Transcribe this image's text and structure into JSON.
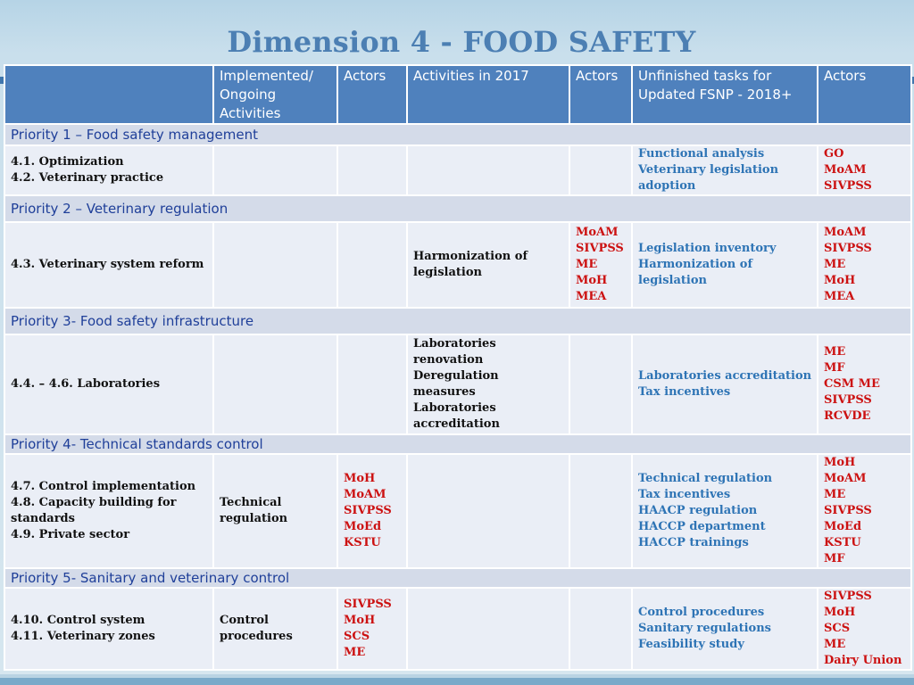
{
  "title": "Dimension 4 - FOOD SAFETY",
  "colors": {
    "header_bg": "#4f81bd",
    "priority_text": "#1f3f99",
    "task_text": "#2e74b5",
    "actor_text": "#cc1111",
    "title_color": "#4c7fb3"
  },
  "headers": {
    "implemented": [
      "Implemented/",
      "Ongoing",
      "Activities"
    ],
    "actors1": "Actors",
    "activities2017": "Activities in 2017",
    "actors2": "Actors",
    "unfinished": [
      "Unfinished tasks for",
      "Updated FSNP - 2018+"
    ],
    "actors3": "Actors"
  },
  "priorities": [
    {
      "label": "Priority 1 – Food safety management",
      "items": [
        "4.1. Optimization",
        "4.2. Veterinary practice"
      ],
      "implemented": [],
      "actors1": [],
      "activities2017": [],
      "actors2": [],
      "tasks": [
        "Functional analysis",
        "Veterinary legislation",
        "adoption"
      ],
      "actors3": [
        "GO",
        "MoAM",
        "SIVPSS"
      ]
    },
    {
      "label": "Priority 2 – Veterinary regulation",
      "items": [
        "4.3. Veterinary system reform"
      ],
      "implemented": [],
      "actors1": [],
      "activities2017": [
        "Harmonization of",
        "legislation"
      ],
      "actors2": [
        "MoAM",
        "SIVPSS",
        "ME",
        "MoH",
        "MEA"
      ],
      "tasks": [
        "Legislation inventory",
        "Harmonization of",
        "legislation"
      ],
      "actors3": [
        "MoAM",
        "SIVPSS",
        "ME",
        "MoH",
        "MEA"
      ]
    },
    {
      "label": "Priority 3- Food safety infrastructure",
      "items": [
        "4.4. – 4.6. Laboratories"
      ],
      "implemented": [],
      "actors1": [],
      "activities2017": [
        "Laboratories",
        "renovation",
        "Deregulation",
        "measures",
        "Laboratories",
        "accreditation"
      ],
      "actors2": [],
      "tasks": [
        "Laboratories accreditation",
        "Tax incentives"
      ],
      "actors3": [
        "ME",
        "MF",
        "CSM ME",
        "SIVPSS",
        "RCVDE"
      ]
    },
    {
      "label": "Priority 4- Technical standards control",
      "items": [
        "4.7. Control implementation",
        "4.8. Capacity building for standards",
        "4.9.  Private sector"
      ],
      "implemented": [
        "Technical",
        "regulation"
      ],
      "actors1": [
        "MoH",
        "MoAM",
        "SIVPSS",
        "MoEd",
        "KSTU"
      ],
      "activities2017": [],
      "actors2": [],
      "tasks": [
        "Technical regulation",
        "Tax incentives",
        "HAACP regulation",
        "HACCP department",
        "HACCP trainings"
      ],
      "actors3": [
        "MoH",
        "MoAM",
        "ME",
        "SIVPSS",
        "MoEd",
        "KSTU",
        "MF"
      ]
    },
    {
      "label": "Priority 5- Sanitary and veterinary control",
      "items": [
        "4.10. Control system",
        "4.11.  Veterinary zones"
      ],
      "implemented": [
        "Control",
        "procedures"
      ],
      "actors1": [
        "SIVPSS",
        "MoH",
        "SCS",
        "ME"
      ],
      "activities2017": [],
      "actors2": [],
      "tasks": [
        "Control procedures",
        "Sanitary regulations",
        "Feasibility study"
      ],
      "actors3": [
        "SIVPSS",
        "MoH",
        "SCS",
        "ME",
        "Dairy Union"
      ]
    }
  ]
}
